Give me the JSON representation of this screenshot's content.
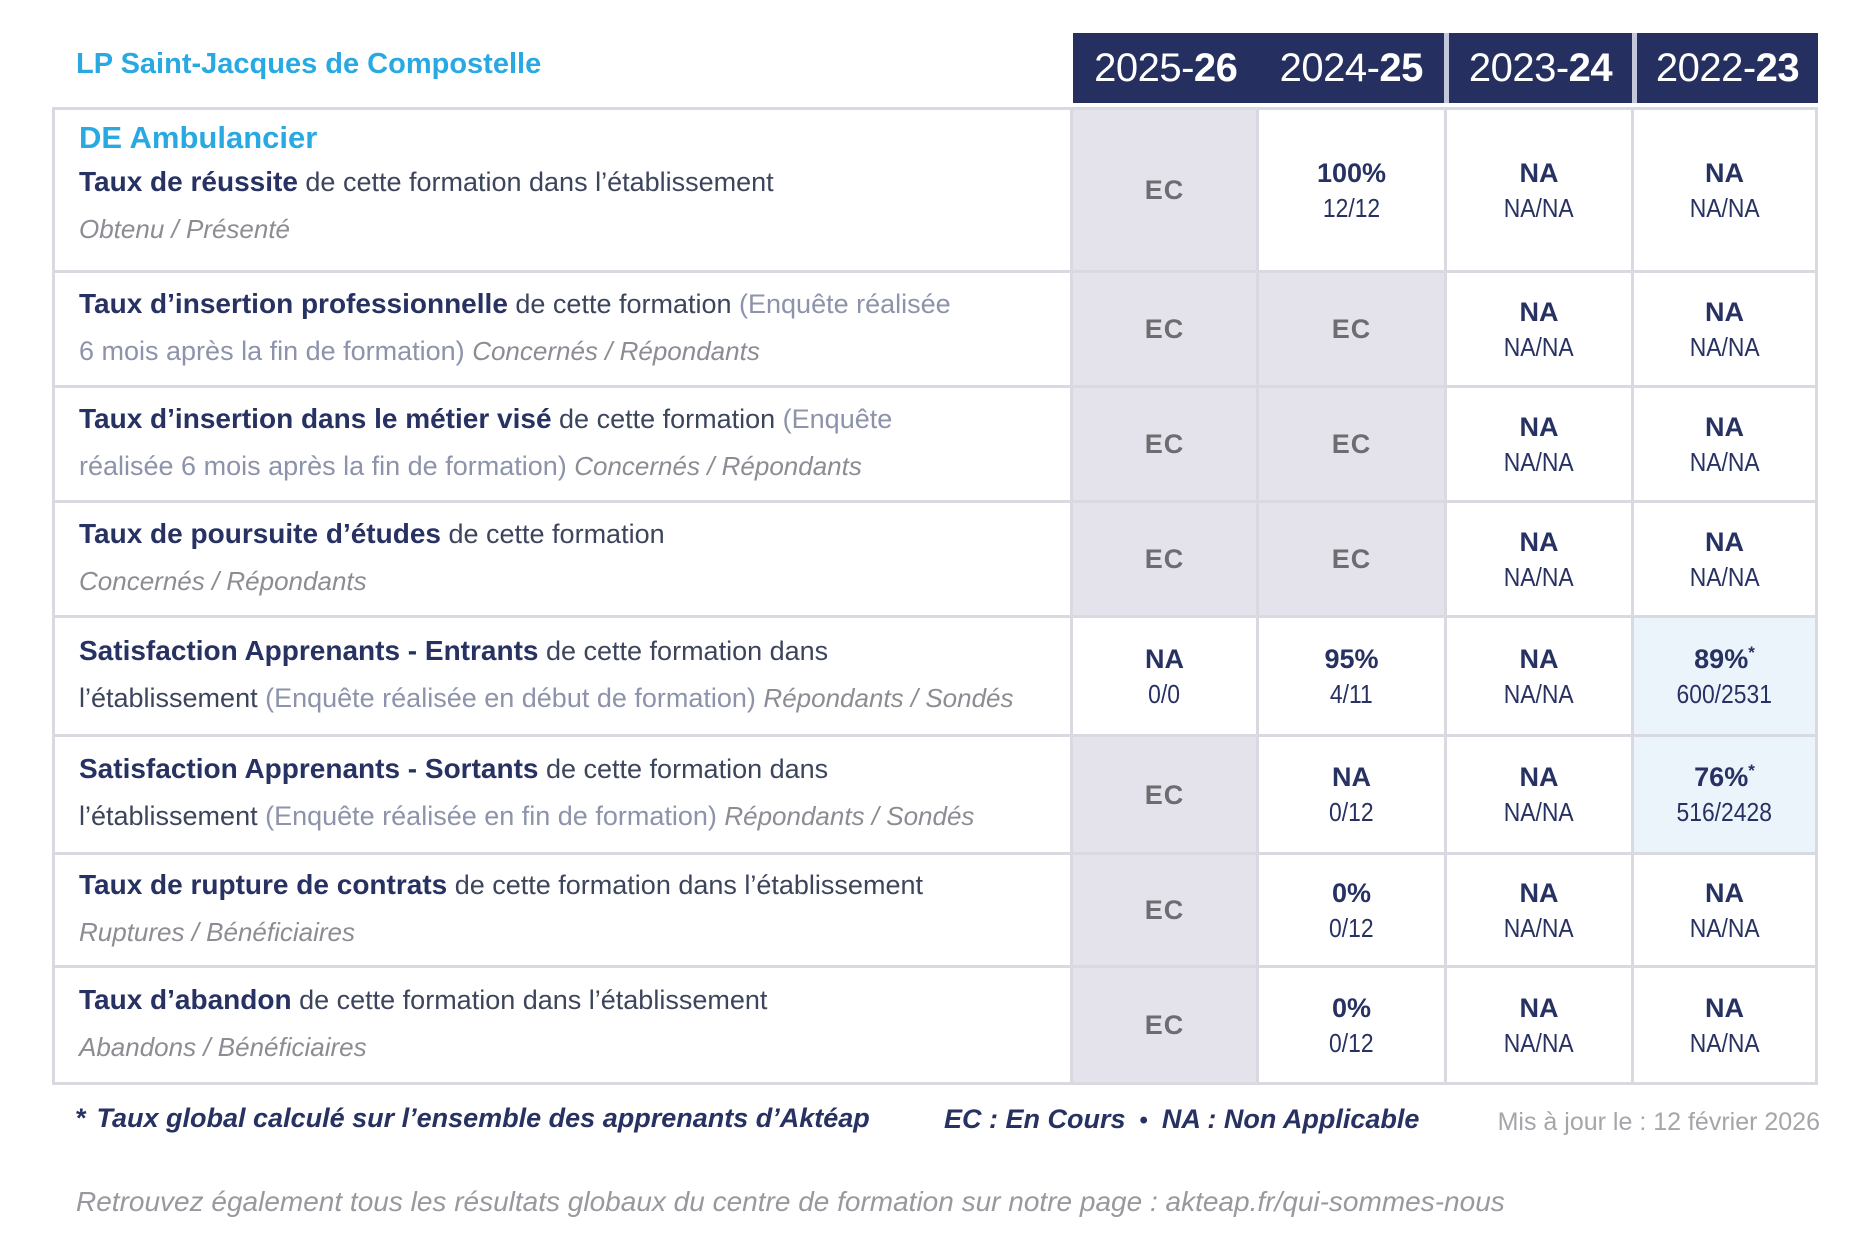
{
  "colors": {
    "accent_blue": "#29A9E1",
    "navy_text": "#273162",
    "header_background": "#263060",
    "gray_cell": "#E4E3EC",
    "blue_highlight_cell": "#EBF4FA",
    "grid_border": "#D9D9E2",
    "ec_text": "#6C6C71"
  },
  "header": {
    "school_name": "LP Saint-Jacques de Compostelle",
    "years": [
      {
        "prefix": "2025-",
        "bold": "26"
      },
      {
        "prefix": "2024-",
        "bold": "25"
      },
      {
        "prefix": "2023-",
        "bold": "24"
      },
      {
        "prefix": "2022-",
        "bold": "23"
      }
    ]
  },
  "program_title": "DE Ambulancier",
  "table": {
    "rows": [
      {
        "label_lines": [
          [
            {
              "style": "t",
              "text": "Taux de réussite"
            },
            {
              "style": "d",
              "text": " de cette formation dans l’établissement"
            }
          ],
          [
            {
              "style": "s",
              "text": "Obtenu / Présenté"
            }
          ]
        ],
        "cells": [
          {
            "bg": "gray",
            "main": "EC"
          },
          {
            "bg": "white",
            "main": "100%",
            "sub": "12/12"
          },
          {
            "bg": "white",
            "main": "NA",
            "sub": "NA/NA"
          },
          {
            "bg": "white",
            "main": "NA",
            "sub": "NA/NA"
          }
        ]
      },
      {
        "label_lines": [
          [
            {
              "style": "t",
              "text": "Taux d’insertion professionnelle"
            },
            {
              "style": "d",
              "text": " de cette formation "
            },
            {
              "style": "n",
              "text": "(Enquête réalisée"
            }
          ],
          [
            {
              "style": "n",
              "text": "6 mois après la fin de formation) "
            },
            {
              "style": "s",
              "text": "Concernés / Répondants"
            }
          ]
        ],
        "cells": [
          {
            "bg": "gray",
            "main": "EC"
          },
          {
            "bg": "gray",
            "main": "EC"
          },
          {
            "bg": "white",
            "main": "NA",
            "sub": "NA/NA"
          },
          {
            "bg": "white",
            "main": "NA",
            "sub": "NA/NA"
          }
        ]
      },
      {
        "label_lines": [
          [
            {
              "style": "t",
              "text": "Taux d’insertion dans le métier visé"
            },
            {
              "style": "d",
              "text": " de cette formation "
            },
            {
              "style": "n",
              "text": "(Enquête"
            }
          ],
          [
            {
              "style": "n",
              "text": "réalisée 6 mois après la fin de formation) "
            },
            {
              "style": "s",
              "text": "Concernés / Répondants"
            }
          ]
        ],
        "cells": [
          {
            "bg": "gray",
            "main": "EC"
          },
          {
            "bg": "gray",
            "main": "EC"
          },
          {
            "bg": "white",
            "main": "NA",
            "sub": "NA/NA"
          },
          {
            "bg": "white",
            "main": "NA",
            "sub": "NA/NA"
          }
        ]
      },
      {
        "label_lines": [
          [
            {
              "style": "t",
              "text": "Taux de poursuite d’études"
            },
            {
              "style": "d",
              "text": " de cette formation"
            }
          ],
          [
            {
              "style": "s",
              "text": "Concernés / Répondants"
            }
          ]
        ],
        "cells": [
          {
            "bg": "gray",
            "main": "EC"
          },
          {
            "bg": "gray",
            "main": "EC"
          },
          {
            "bg": "white",
            "main": "NA",
            "sub": "NA/NA"
          },
          {
            "bg": "white",
            "main": "NA",
            "sub": "NA/NA"
          }
        ]
      },
      {
        "label_lines": [
          [
            {
              "style": "t",
              "text": "Satisfaction Apprenants - Entrants"
            },
            {
              "style": "d",
              "text": " de cette formation dans"
            }
          ],
          [
            {
              "style": "d",
              "text": "l’établissement "
            },
            {
              "style": "n",
              "text": "(Enquête réalisée en début de formation) "
            },
            {
              "style": "s",
              "text": "Répondants / Sondés"
            }
          ]
        ],
        "cells": [
          {
            "bg": "white",
            "main": "NA",
            "sub": "0/0"
          },
          {
            "bg": "white",
            "main": "95%",
            "sub": "4/11"
          },
          {
            "bg": "white",
            "main": "NA",
            "sub": "NA/NA"
          },
          {
            "bg": "blue",
            "main": "89%",
            "star": true,
            "sub": "600/2531"
          }
        ]
      },
      {
        "label_lines": [
          [
            {
              "style": "t",
              "text": "Satisfaction Apprenants - Sortants"
            },
            {
              "style": "d",
              "text": " de cette formation dans"
            }
          ],
          [
            {
              "style": "d",
              "text": "l’établissement "
            },
            {
              "style": "n",
              "text": "(Enquête réalisée en fin de formation) "
            },
            {
              "style": "s",
              "text": "Répondants / Sondés"
            }
          ]
        ],
        "cells": [
          {
            "bg": "gray",
            "main": "EC"
          },
          {
            "bg": "white",
            "main": "NA",
            "sub": "0/12"
          },
          {
            "bg": "white",
            "main": "NA",
            "sub": "NA/NA"
          },
          {
            "bg": "blue",
            "main": "76%",
            "star": true,
            "sub": "516/2428"
          }
        ]
      },
      {
        "label_lines": [
          [
            {
              "style": "t",
              "text": "Taux de rupture de contrats"
            },
            {
              "style": "d",
              "text": " de cette formation dans l’établissement"
            }
          ],
          [
            {
              "style": "s",
              "text": "Ruptures / Bénéficiaires"
            }
          ]
        ],
        "cells": [
          {
            "bg": "gray",
            "main": "EC"
          },
          {
            "bg": "white",
            "main": "0%",
            "sub": "0/12"
          },
          {
            "bg": "white",
            "main": "NA",
            "sub": "NA/NA"
          },
          {
            "bg": "white",
            "main": "NA",
            "sub": "NA/NA"
          }
        ]
      },
      {
        "label_lines": [
          [
            {
              "style": "t",
              "text": "Taux d’abandon"
            },
            {
              "style": "d",
              "text": " de cette formation dans l’établissement"
            }
          ],
          [
            {
              "style": "s",
              "text": "Abandons / Bénéficiaires"
            }
          ]
        ],
        "cells": [
          {
            "bg": "gray",
            "main": "EC"
          },
          {
            "bg": "white",
            "main": "0%",
            "sub": "0/12"
          },
          {
            "bg": "white",
            "main": "NA",
            "sub": "NA/NA"
          },
          {
            "bg": "white",
            "main": "NA",
            "sub": "NA/NA"
          }
        ]
      }
    ]
  },
  "footer": {
    "star": "*",
    "note": "Taux global calculé sur l’ensemble des apprenants d’Aktéap",
    "legend_ec": "EC : En Cours",
    "bullet": "•",
    "legend_na": "NA : Non Applicable",
    "updated": "Mis à jour le : 12 février 2026",
    "bottom_note": "Retrouvez également tous les résultats globaux du centre de formation sur notre page : akteap.fr/qui-sommes-nous"
  }
}
